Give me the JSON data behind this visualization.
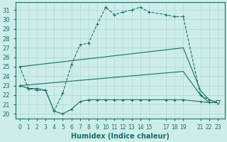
{
  "xlabel": "Humidex (Indice chaleur)",
  "bg_color": "#cdeee8",
  "line_color": "#1a6b6b",
  "grid_color": "#aad9d0",
  "xticks": [
    0,
    1,
    2,
    3,
    4,
    5,
    6,
    7,
    8,
    9,
    10,
    11,
    12,
    13,
    14,
    15,
    17,
    18,
    19,
    21,
    22,
    23
  ],
  "xtick_labels": [
    "0",
    "1",
    "2",
    "3",
    "4",
    "5",
    "6",
    "7",
    "8",
    "9",
    "10",
    "11",
    "12",
    "13",
    "14",
    "15",
    "17",
    "18",
    "19",
    "21",
    "22",
    "23"
  ],
  "ylim": [
    19.5,
    31.8
  ],
  "yticks": [
    20,
    21,
    22,
    23,
    24,
    25,
    26,
    27,
    28,
    29,
    30,
    31
  ],
  "xlim": [
    -0.5,
    23.8
  ],
  "curve_top_x": [
    0,
    1,
    2,
    3,
    4,
    5,
    6,
    7,
    8,
    9,
    10,
    11,
    12,
    13,
    14,
    15,
    17,
    18,
    19,
    21,
    22,
    23
  ],
  "curve_top_y": [
    25.0,
    22.7,
    22.5,
    22.5,
    20.3,
    22.2,
    25.2,
    27.3,
    27.5,
    29.5,
    31.3,
    30.5,
    30.8,
    31.0,
    31.3,
    30.8,
    30.5,
    30.3,
    30.3,
    22.0,
    21.5,
    21.2
  ],
  "curve_upper_diag_x": [
    0,
    19,
    21,
    22,
    23
  ],
  "curve_upper_diag_y": [
    25.0,
    27.0,
    22.5,
    21.5,
    21.2
  ],
  "curve_lower_diag_x": [
    0,
    19,
    21,
    22,
    23
  ],
  "curve_lower_diag_y": [
    23.0,
    24.5,
    22.0,
    21.2,
    21.2
  ],
  "curve_bot_x": [
    0,
    1,
    2,
    3,
    4,
    5,
    6,
    7,
    8,
    9,
    10,
    11,
    12,
    13,
    14,
    15,
    17,
    18,
    19,
    21,
    22,
    23
  ],
  "curve_bot_y": [
    23.0,
    22.7,
    22.7,
    22.5,
    20.3,
    20.0,
    20.5,
    21.3,
    21.5,
    21.5,
    21.5,
    21.5,
    21.5,
    21.5,
    21.5,
    21.5,
    21.5,
    21.5,
    21.5,
    21.3,
    21.2,
    21.2
  ],
  "triangle_x": 23,
  "triangle_y": 21.2
}
